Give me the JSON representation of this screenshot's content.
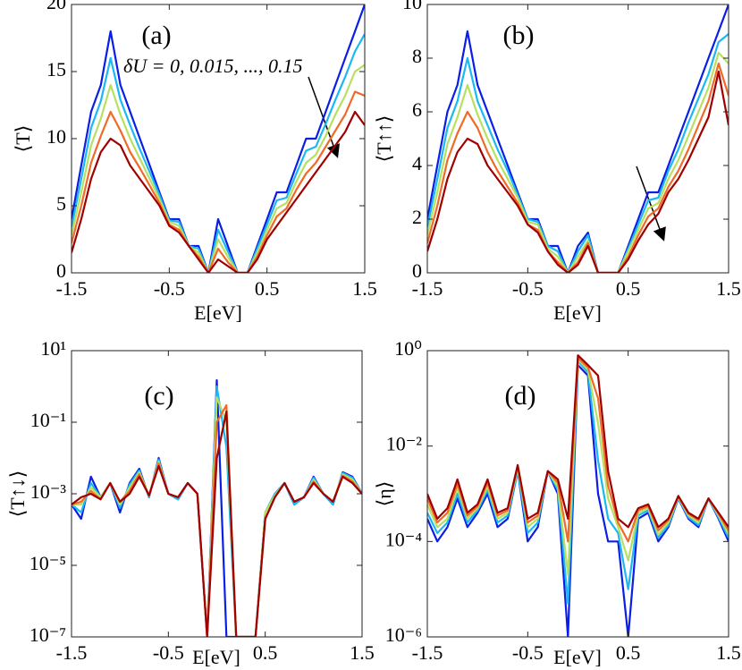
{
  "chart_data": [
    {
      "type": "line",
      "panel_label": "(a)",
      "xlabel": "E[eV]",
      "ylabel": "⟨T⟩",
      "annotation": "δU = 0, 0.015, ..., 0.15",
      "xlim": [
        -1.5,
        1.5
      ],
      "xticks": [
        -1.5,
        -0.5,
        0.5,
        1.5
      ],
      "ylim": [
        0,
        20
      ],
      "yticks": [
        0,
        5,
        10,
        15,
        20
      ],
      "yscale": "linear",
      "x": [
        -1.5,
        -1.4,
        -1.3,
        -1.2,
        -1.1,
        -1.0,
        -0.9,
        -0.8,
        -0.7,
        -0.6,
        -0.5,
        -0.4,
        -0.3,
        -0.2,
        -0.1,
        0.0,
        0.1,
        0.2,
        0.3,
        0.4,
        0.5,
        0.6,
        0.7,
        0.8,
        0.9,
        1.0,
        1.1,
        1.2,
        1.3,
        1.4,
        1.5
      ],
      "series": [
        {
          "color": "#0a1ee6",
          "values": [
            4,
            8,
            12,
            14,
            18,
            14,
            12,
            10,
            8,
            6,
            4,
            4,
            2,
            2,
            0,
            4,
            2,
            0,
            0,
            2,
            4,
            6,
            6,
            8,
            10,
            10,
            12,
            14,
            16,
            18,
            20
          ]
        },
        {
          "color": "#1ab8f5",
          "values": [
            3.4,
            7,
            10.8,
            12.8,
            16,
            12.9,
            11,
            9.2,
            7.5,
            5.8,
            3.9,
            3.8,
            2,
            1.8,
            0,
            3.2,
            1.6,
            0,
            0,
            1.8,
            3.6,
            5.4,
            5.6,
            7.4,
            9.1,
            9.4,
            11.1,
            12.9,
            14.6,
            16.5,
            17.8
          ]
        },
        {
          "color": "#b8e060",
          "values": [
            2.8,
            6,
            9.5,
            11.5,
            14,
            11.8,
            10,
            8.5,
            7,
            5.5,
            3.8,
            3.5,
            2,
            1.5,
            0,
            2.5,
            1.2,
            0,
            0,
            1.5,
            3.2,
            4.8,
            5.2,
            6.8,
            8.2,
            8.8,
            10.2,
            11.8,
            13.2,
            15,
            15.5
          ]
        },
        {
          "color": "#f06a28",
          "values": [
            2.2,
            5,
            8.2,
            10.2,
            12,
            10.6,
            9,
            7.8,
            6.5,
            5.2,
            3.6,
            3.2,
            2,
            1.2,
            0,
            1.8,
            0.8,
            0,
            0,
            1.2,
            2.8,
            4.2,
            4.8,
            6.2,
            7.4,
            8.2,
            9.4,
            10.6,
            11.8,
            13.5,
            13.2
          ]
        },
        {
          "color": "#a00000",
          "values": [
            1.5,
            4,
            7,
            9,
            10,
            9.5,
            8,
            7,
            6,
            5,
            3.5,
            3,
            2,
            1,
            0,
            1,
            0.5,
            0,
            0,
            1,
            2.5,
            3.5,
            4.5,
            5.5,
            6.5,
            7.5,
            8.5,
            9.5,
            10.5,
            12,
            11
          ]
        }
      ]
    },
    {
      "type": "line",
      "panel_label": "(b)",
      "xlabel": "E[eV]",
      "ylabel": "⟨T↑↑⟩",
      "xlim": [
        -1.5,
        1.5
      ],
      "xticks": [
        -1.5,
        -0.5,
        0.5,
        1.5
      ],
      "ylim": [
        0,
        10
      ],
      "yticks": [
        0,
        2,
        4,
        6,
        8,
        10
      ],
      "yscale": "linear",
      "x": [
        -1.5,
        -1.4,
        -1.3,
        -1.2,
        -1.1,
        -1.0,
        -0.9,
        -0.8,
        -0.7,
        -0.6,
        -0.5,
        -0.4,
        -0.3,
        -0.2,
        -0.1,
        0.0,
        0.1,
        0.2,
        0.3,
        0.4,
        0.5,
        0.6,
        0.7,
        0.8,
        0.9,
        1.0,
        1.1,
        1.2,
        1.3,
        1.4,
        1.5
      ],
      "series": [
        {
          "color": "#0a1ee6",
          "values": [
            2,
            4,
            6,
            7,
            9,
            7,
            6,
            5,
            4,
            3,
            2,
            2,
            1,
            1,
            0,
            1,
            1.5,
            0,
            0,
            0,
            1,
            2,
            3,
            3,
            4,
            5,
            6,
            7,
            8,
            9,
            10
          ]
        },
        {
          "color": "#1ab8f5",
          "values": [
            1.7,
            3.5,
            5.4,
            6.4,
            8,
            6.4,
            5.5,
            4.6,
            3.8,
            2.9,
            2,
            1.9,
            1,
            0.8,
            0,
            0.8,
            1.4,
            0,
            0,
            0,
            0.9,
            1.8,
            2.7,
            2.8,
            3.8,
            4.6,
            5.6,
            6.5,
            7.4,
            8.6,
            8.9
          ]
        },
        {
          "color": "#b8e060",
          "values": [
            1.4,
            3,
            4.8,
            5.8,
            7,
            5.9,
            5,
            4.2,
            3.5,
            2.8,
            1.9,
            1.8,
            0.9,
            0.6,
            0,
            0.6,
            1.2,
            0,
            0,
            0,
            0.8,
            1.6,
            2.4,
            2.6,
            3.5,
            4.2,
            5.1,
            6,
            6.9,
            8.2,
            7.8
          ]
        },
        {
          "color": "#f06a28",
          "values": [
            1.1,
            2.5,
            4.2,
            5.2,
            6,
            5.4,
            4.5,
            3.8,
            3.2,
            2.6,
            1.8,
            1.6,
            0.8,
            0.4,
            0,
            0.4,
            1.1,
            0,
            0,
            0,
            0.6,
            1.4,
            2.1,
            2.4,
            3.2,
            3.8,
            4.6,
            5.5,
            6.4,
            7.8,
            6.6
          ]
        },
        {
          "color": "#a00000",
          "values": [
            0.8,
            2,
            3.5,
            4.5,
            5,
            4.8,
            4,
            3.5,
            3,
            2.5,
            1.8,
            1.5,
            0.8,
            0.3,
            0,
            0.3,
            1,
            0,
            0,
            0,
            0.5,
            1.2,
            1.8,
            2.2,
            3,
            3.5,
            4.2,
            5,
            5.8,
            7.5,
            5.5
          ]
        }
      ]
    },
    {
      "type": "line",
      "panel_label": "(c)",
      "xlabel": "E[eV]",
      "ylabel": "⟨T↑↓⟩",
      "xlim": [
        -1.5,
        1.5
      ],
      "xticks": [
        -1.5,
        -0.5,
        0.5,
        1.5
      ],
      "ylim": [
        1e-07,
        10
      ],
      "yscale": "log",
      "yticks": [
        {
          "value": 1e-07,
          "label": "10⁻⁷"
        },
        {
          "value": 1e-05,
          "label": "10⁻⁵"
        },
        {
          "value": 0.001,
          "label": "10⁻³"
        },
        {
          "value": 0.1,
          "label": "10⁻¹"
        },
        {
          "value": 10,
          "label": "10¹"
        }
      ],
      "x": [
        -1.5,
        -1.4,
        -1.3,
        -1.2,
        -1.1,
        -1.0,
        -0.9,
        -0.8,
        -0.7,
        -0.6,
        -0.5,
        -0.4,
        -0.3,
        -0.2,
        -0.1,
        0.0,
        0.1,
        0.2,
        0.3,
        0.4,
        0.5,
        0.6,
        0.7,
        0.8,
        0.9,
        1.0,
        1.1,
        1.2,
        1.3,
        1.4,
        1.5
      ],
      "series": [
        {
          "color": "#0a1ee6",
          "values": [
            0.0005,
            0.0002,
            0.003,
            0.0008,
            0.002,
            0.0003,
            0.002,
            0.005,
            0.0008,
            0.01,
            0.001,
            0.0007,
            0.002,
            0.001,
            1e-07,
            1.5,
            1e-07,
            1e-07,
            1e-07,
            1e-07,
            0.0003,
            0.001,
            0.002,
            0.0005,
            0.0008,
            0.003,
            0.001,
            0.0005,
            0.004,
            0.003,
            0.001
          ]
        },
        {
          "color": "#1ab8f5",
          "values": [
            0.0005,
            0.0003,
            0.002,
            0.0008,
            0.002,
            0.0004,
            0.0018,
            0.0045,
            0.0008,
            0.009,
            0.001,
            0.0007,
            0.002,
            0.001,
            1e-07,
            1,
            0.02,
            1e-07,
            1e-07,
            1e-07,
            0.0003,
            0.001,
            0.002,
            0.0005,
            0.0008,
            0.0028,
            0.001,
            0.0005,
            0.0038,
            0.0028,
            0.001
          ]
        },
        {
          "color": "#b8e060",
          "values": [
            0.0005,
            0.0005,
            0.0015,
            0.0008,
            0.002,
            0.0005,
            0.0015,
            0.004,
            0.0009,
            0.008,
            0.001,
            0.0008,
            0.002,
            0.001,
            1e-07,
            0.5,
            0.1,
            1e-07,
            1e-07,
            1e-07,
            0.0003,
            0.0009,
            0.002,
            0.0006,
            0.0008,
            0.0025,
            0.001,
            0.0006,
            0.0035,
            0.0025,
            0.001
          ]
        },
        {
          "color": "#f06a28",
          "values": [
            0.0005,
            0.0006,
            0.0012,
            0.0007,
            0.002,
            0.0006,
            0.0012,
            0.0035,
            0.0009,
            0.007,
            0.001,
            0.0008,
            0.002,
            0.001,
            1e-07,
            0.1,
            0.3,
            1e-07,
            1e-07,
            1e-07,
            0.0002,
            0.0008,
            0.002,
            0.0006,
            0.0008,
            0.0022,
            0.001,
            0.0006,
            0.0032,
            0.0022,
            0.001
          ]
        },
        {
          "color": "#a00000",
          "values": [
            0.0005,
            0.0008,
            0.001,
            0.0007,
            0.002,
            0.0006,
            0.001,
            0.003,
            0.0009,
            0.006,
            0.001,
            0.0008,
            0.002,
            0.001,
            1e-07,
            0.01,
            0.2,
            1e-07,
            1e-07,
            1e-07,
            0.0002,
            0.0008,
            0.002,
            0.0006,
            0.0008,
            0.002,
            0.001,
            0.0006,
            0.003,
            0.002,
            0.001
          ]
        }
      ]
    },
    {
      "type": "line",
      "panel_label": "(d)",
      "xlabel": "E[eV]",
      "ylabel": "⟨η⟩",
      "xlim": [
        -1.5,
        1.5
      ],
      "xticks": [
        -1.5,
        -0.5,
        0.5,
        1.5
      ],
      "ylim": [
        1e-06,
        1
      ],
      "yscale": "log",
      "yticks": [
        {
          "value": 1e-06,
          "label": "10⁻⁶"
        },
        {
          "value": 0.0001,
          "label": "10⁻⁴"
        },
        {
          "value": 0.01,
          "label": "10⁻²"
        },
        {
          "value": 1,
          "label": "10⁰"
        }
      ],
      "x": [
        -1.5,
        -1.4,
        -1.3,
        -1.2,
        -1.1,
        -1.0,
        -0.9,
        -0.8,
        -0.7,
        -0.6,
        -0.5,
        -0.4,
        -0.3,
        -0.2,
        -0.1,
        0.0,
        0.1,
        0.2,
        0.3,
        0.4,
        0.5,
        0.6,
        0.7,
        0.8,
        0.9,
        1.0,
        1.1,
        1.2,
        1.3,
        1.4,
        1.5
      ],
      "series": [
        {
          "color": "#0a1ee6",
          "values": [
            0.0003,
            0.0001,
            0.0002,
            0.0008,
            0.0002,
            0.0004,
            0.001,
            0.0002,
            0.0003,
            0.003,
            0.0001,
            0.0002,
            0.003,
            0.001,
            1e-06,
            0.5,
            0.3,
            0.001,
            0.0001,
            0.0001,
            1e-06,
            0.0003,
            0.0004,
            0.0001,
            0.0002,
            0.0008,
            0.0003,
            0.0002,
            0.0008,
            0.0003,
            0.0001
          ]
        },
        {
          "color": "#1ab8f5",
          "values": [
            0.0004,
            0.00015,
            0.00025,
            0.001,
            0.00025,
            0.00045,
            0.0012,
            0.00025,
            0.00035,
            0.003,
            0.00015,
            0.00025,
            0.003,
            0.0012,
            5e-06,
            0.6,
            0.35,
            0.005,
            0.0003,
            0.00015,
            1e-05,
            0.00035,
            0.00045,
            0.00012,
            0.00022,
            0.00082,
            0.00032,
            0.00022,
            0.0008,
            0.00032,
            0.00012
          ]
        },
        {
          "color": "#b8e060",
          "values": [
            0.0006,
            0.0002,
            0.0003,
            0.0013,
            0.0003,
            0.0005,
            0.0014,
            0.0003,
            0.0004,
            0.0035,
            0.0002,
            0.0003,
            0.003,
            0.0014,
            2e-05,
            0.65,
            0.4,
            0.03,
            0.0008,
            0.0002,
            4e-05,
            0.0004,
            0.0005,
            0.00014,
            0.00025,
            0.00085,
            0.00035,
            0.00025,
            0.0008,
            0.00035,
            0.00014
          ]
        },
        {
          "color": "#f06a28",
          "values": [
            0.0008,
            0.00025,
            0.0004,
            0.0016,
            0.00035,
            0.00055,
            0.0017,
            0.00035,
            0.00045,
            0.0038,
            0.00025,
            0.00035,
            0.003,
            0.0017,
            0.0001,
            0.7,
            0.45,
            0.1,
            0.0015,
            0.00025,
            0.0001,
            0.00045,
            0.00055,
            0.00017,
            0.00028,
            0.00088,
            0.00038,
            0.00028,
            0.0008,
            0.00038,
            0.00017
          ]
        },
        {
          "color": "#a00000",
          "values": [
            0.001,
            0.0003,
            0.0005,
            0.002,
            0.0004,
            0.0006,
            0.002,
            0.0004,
            0.0005,
            0.004,
            0.0003,
            0.0004,
            0.003,
            0.002,
            0.0003,
            0.8,
            0.5,
            0.3,
            0.003,
            0.0003,
            0.0002,
            0.0005,
            0.0006,
            0.0002,
            0.0003,
            0.0009,
            0.0004,
            0.0003,
            0.0008,
            0.0004,
            0.0002
          ]
        }
      ]
    }
  ]
}
